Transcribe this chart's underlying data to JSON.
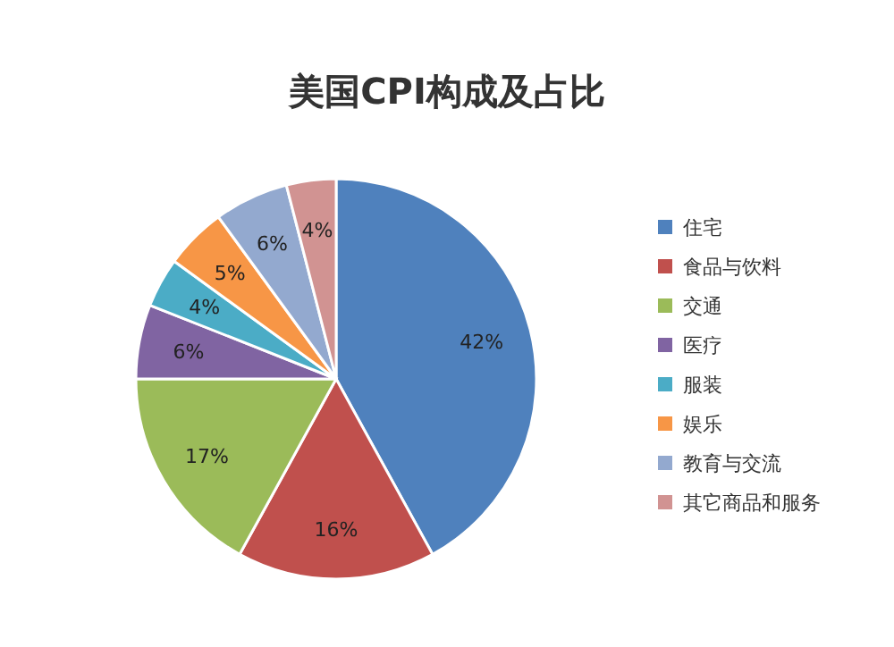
{
  "chart_data": {
    "type": "pie",
    "title": "美国CPI构成及占比",
    "categories": [
      "住宅",
      "食品与饮料",
      "交通",
      "医疗",
      "服装",
      "娱乐",
      "教育与交流",
      "其它商品和服务"
    ],
    "values": [
      42,
      16,
      17,
      6,
      4,
      5,
      6,
      4
    ],
    "colors": [
      "#4f81bd",
      "#c0504d",
      "#9bbb59",
      "#8064a2",
      "#4bacc6",
      "#f79646",
      "#93a9cf",
      "#d19392"
    ],
    "value_labels": [
      "42%",
      "16%",
      "17%",
      "6%",
      "4%",
      "5%",
      "6%",
      "4%"
    ],
    "legend": "right"
  }
}
